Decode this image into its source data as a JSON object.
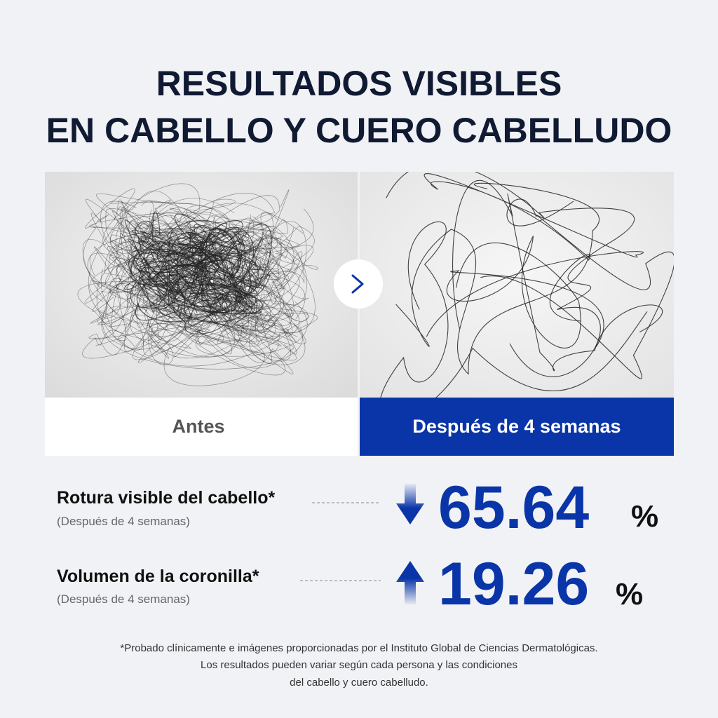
{
  "title": {
    "line1": "RESULTADOS VISIBLES",
    "line2": "EN CABELLO Y CUERO CABELLUDO"
  },
  "panels": {
    "before": "Antes",
    "after": "Después de 4 semanas"
  },
  "stats": [
    {
      "label": "Rotura visible del cabello*",
      "note": "(Después de 4 semanas)",
      "value": "65.64",
      "unit": "%"
    },
    {
      "label": "Volumen de la coronilla*",
      "note": "(Después de 4 semanas)",
      "value": "19.26",
      "unit": "%"
    }
  ],
  "footnote": [
    "*Probado clínicamente e imágenes proporcionadas por el Instituto Global de Ciencias Dermatológicas.",
    "Los resultados pueden variar según cada persona y las condiciones",
    "del cabello y cuero cabelludo."
  ]
}
